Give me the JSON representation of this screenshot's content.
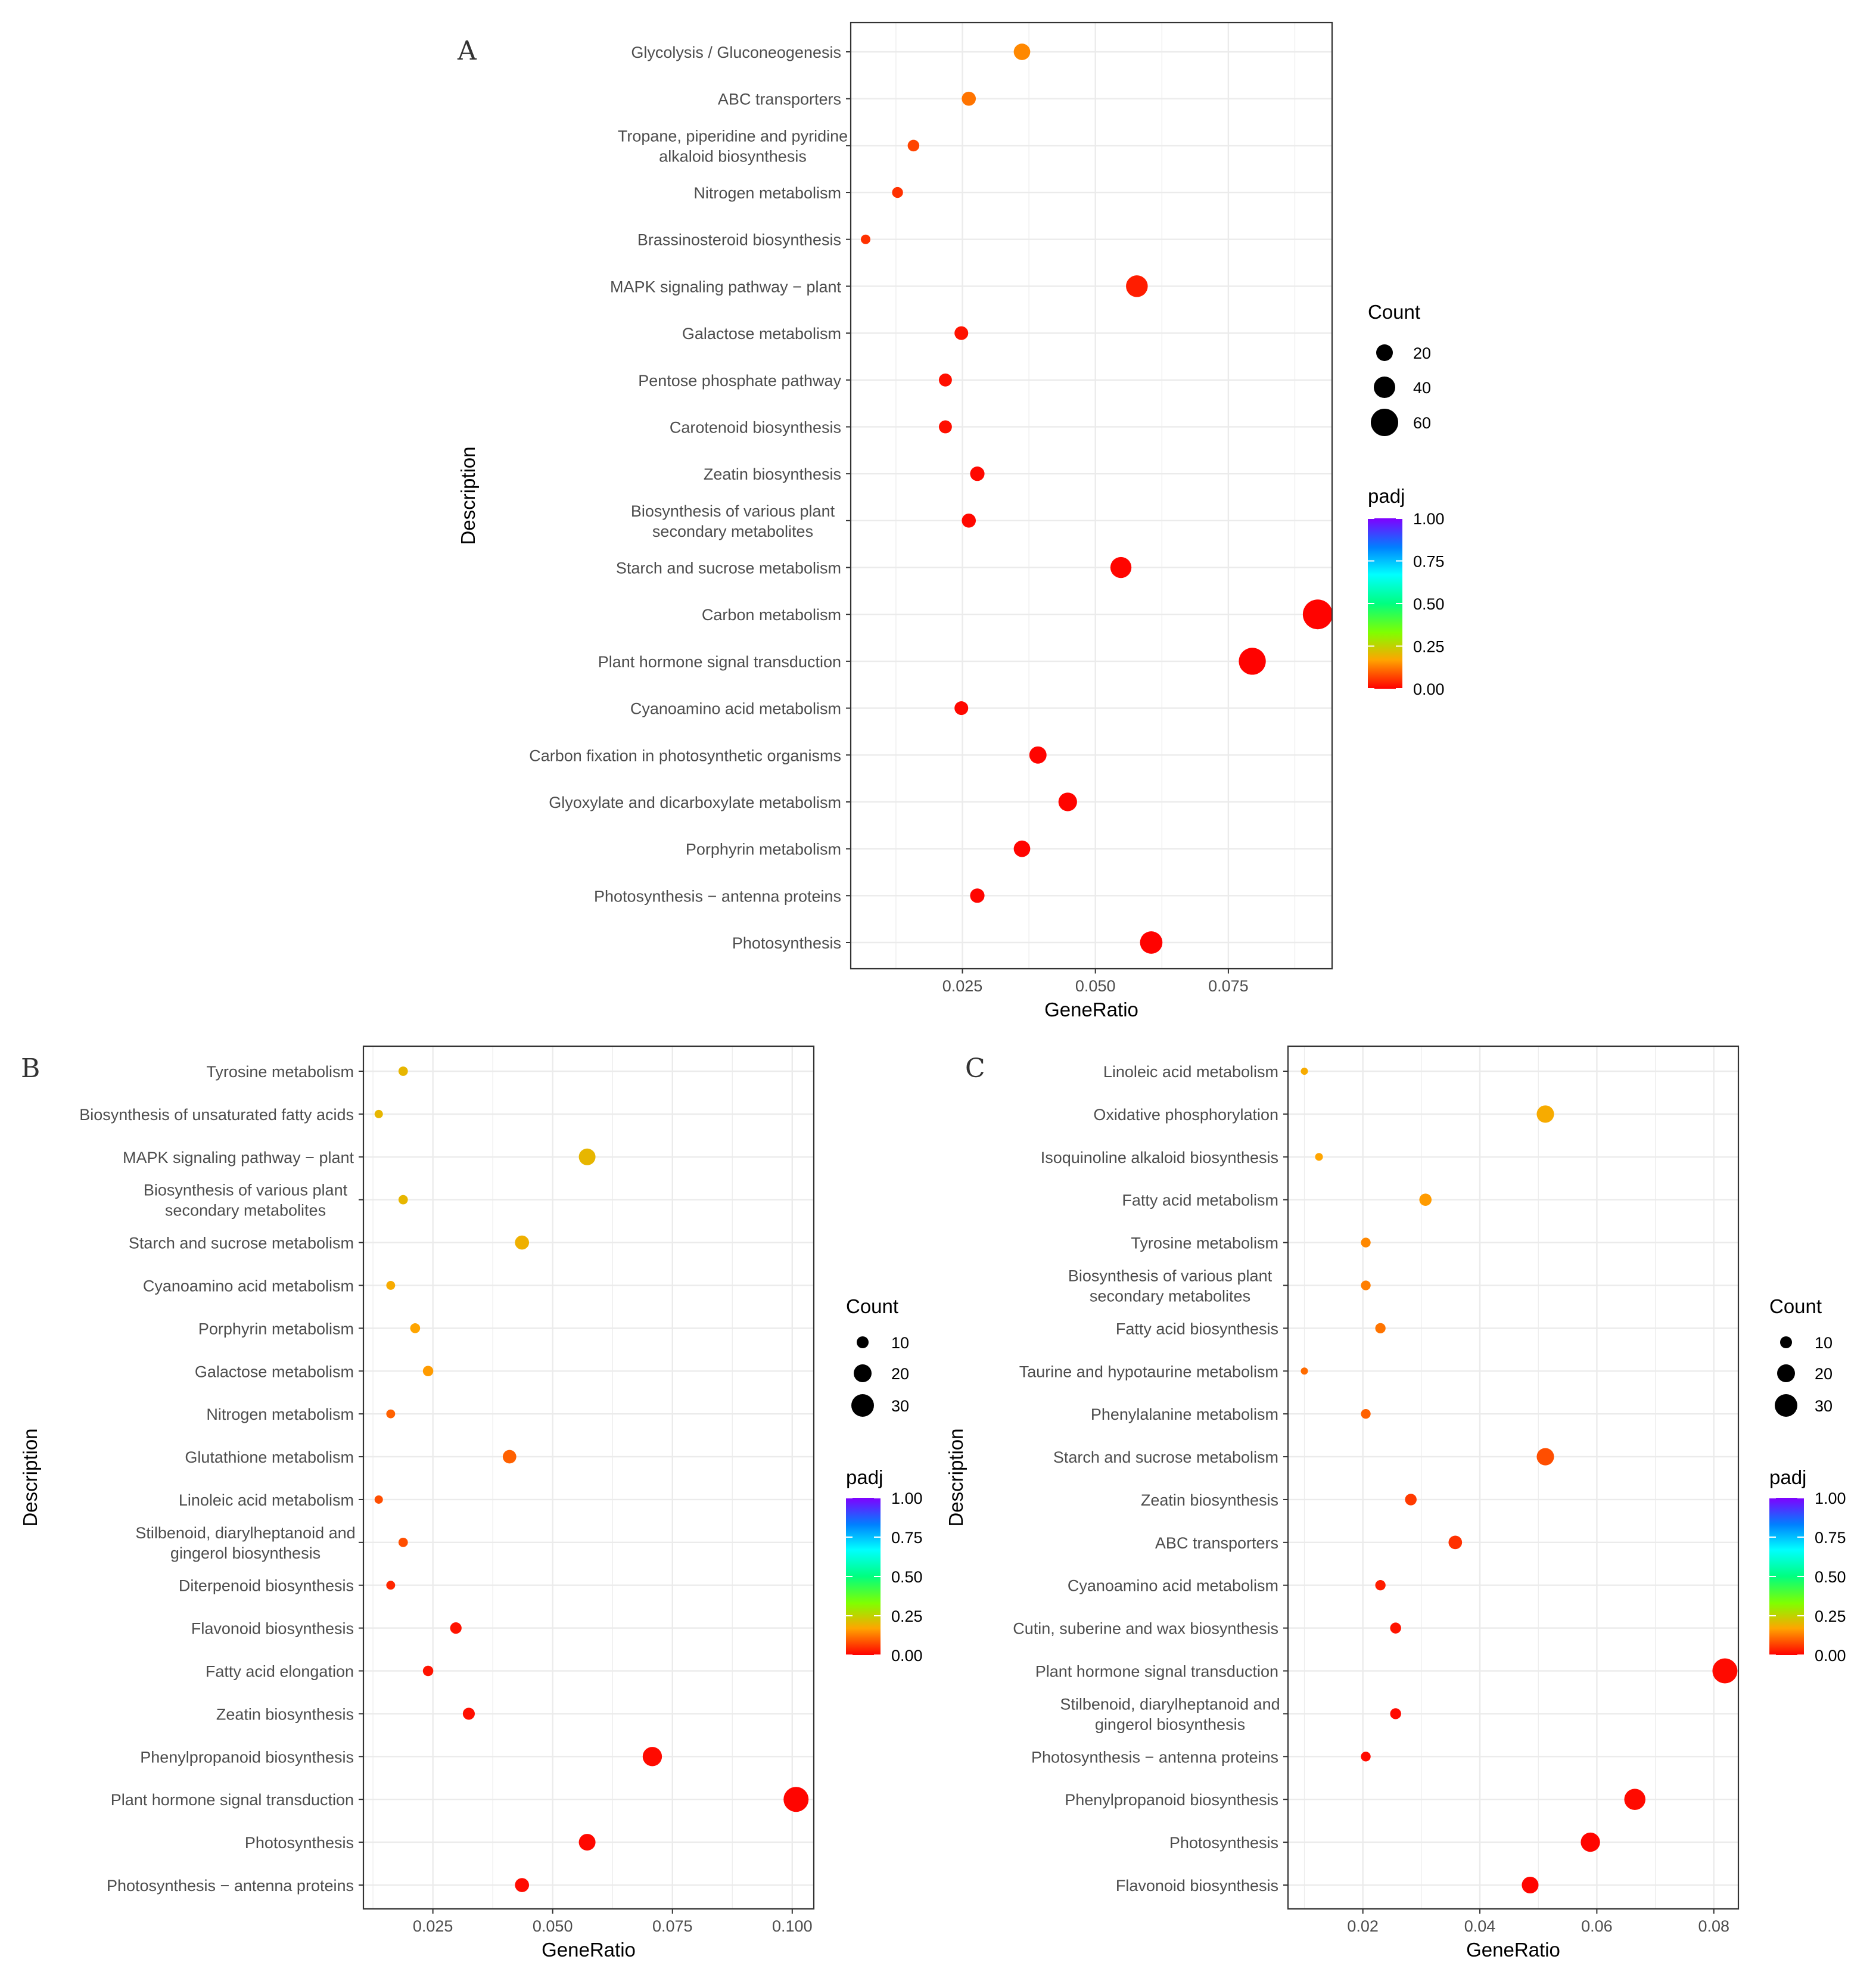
{
  "chart_data": [
    {
      "panel": "A",
      "type": "scatter",
      "xlabel": "GeneRatio",
      "ylabel": "Description",
      "xlim": [
        0.004,
        0.0945
      ],
      "xticks": [
        0.025,
        0.05,
        0.075
      ],
      "xtick_labels": [
        "0.025",
        "0.050",
        "0.075"
      ],
      "size_legend": {
        "title": "Count",
        "values": [
          20,
          40,
          60
        ],
        "labels": [
          "20",
          "40",
          "60"
        ]
      },
      "color_legend": {
        "title": "padj",
        "ticks": [
          1.0,
          0.75,
          0.5,
          0.25,
          0.0
        ],
        "labels": [
          "1.00",
          "0.75",
          "0.50",
          "0.25",
          "0.00"
        ]
      },
      "legend_position": "right",
      "categories": [
        [
          "Glycolysis / Gluconeogenesis"
        ],
        [
          "ABC transporters"
        ],
        [
          "Tropane, piperidine and pyridine",
          "alkaloid biosynthesis"
        ],
        [
          "Nitrogen metabolism"
        ],
        [
          "Brassinosteroid biosynthesis"
        ],
        [
          "MAPK signaling pathway − plant"
        ],
        [
          "Galactose metabolism"
        ],
        [
          "Pentose phosphate pathway"
        ],
        [
          "Carotenoid biosynthesis"
        ],
        [
          "Zeatin biosynthesis"
        ],
        [
          "Biosynthesis of various plant",
          "secondary metabolites"
        ],
        [
          "Starch and sucrose metabolism"
        ],
        [
          "Carbon metabolism"
        ],
        [
          "Plant hormone signal transduction"
        ],
        [
          "Cyanoamino acid metabolism"
        ],
        [
          "Carbon fixation in photosynthetic organisms"
        ],
        [
          "Glyoxylate and dicarboxylate metabolism"
        ],
        [
          "Porphyrin metabolism"
        ],
        [
          "Photosynthesis − antenna proteins"
        ],
        [
          "Photosynthesis"
        ]
      ],
      "gene_ratio": [
        0.0362,
        0.0262,
        0.0158,
        0.0128,
        0.0068,
        0.0578,
        0.0248,
        0.0218,
        0.0218,
        0.0278,
        0.0262,
        0.0548,
        0.0918,
        0.0795,
        0.0248,
        0.0392,
        0.0448,
        0.0362,
        0.0278,
        0.0605
      ],
      "count": [
        25,
        18,
        11,
        9,
        5,
        40,
        17,
        15,
        15,
        19,
        18,
        38,
        63,
        55,
        17,
        27,
        31,
        25,
        19,
        42
      ],
      "padj": [
        0.14,
        0.12,
        0.07,
        0.05,
        0.05,
        0.03,
        0.02,
        0.015,
        0.015,
        0.008,
        0.008,
        0.005,
        0.003,
        0.002,
        0.008,
        0.004,
        0.004,
        0.004,
        0.005,
        0.002
      ]
    },
    {
      "panel": "B",
      "type": "scatter",
      "xlabel": "GeneRatio",
      "ylabel": "Description",
      "xlim": [
        0.0105,
        0.1045
      ],
      "xticks": [
        0.025,
        0.05,
        0.075,
        0.1
      ],
      "xtick_labels": [
        "0.025",
        "0.050",
        "0.075",
        "0.100"
      ],
      "size_legend": {
        "title": "Count",
        "values": [
          10,
          20,
          30
        ],
        "labels": [
          "10",
          "20",
          "30"
        ]
      },
      "color_legend": {
        "title": "padj",
        "ticks": [
          1.0,
          0.75,
          0.5,
          0.25,
          0.0
        ],
        "labels": [
          "1.00",
          "0.75",
          "0.50",
          "0.25",
          "0.00"
        ]
      },
      "legend_position": "right",
      "categories": [
        [
          "Tyrosine metabolism"
        ],
        [
          "Biosynthesis of unsaturated fatty acids"
        ],
        [
          "MAPK signaling pathway − plant"
        ],
        [
          "Biosynthesis of various plant",
          "secondary metabolites"
        ],
        [
          "Starch and sucrose metabolism"
        ],
        [
          "Cyanoamino acid metabolism"
        ],
        [
          "Porphyrin metabolism"
        ],
        [
          "Galactose metabolism"
        ],
        [
          "Nitrogen metabolism"
        ],
        [
          "Glutathione metabolism"
        ],
        [
          "Linoleic acid metabolism"
        ],
        [
          "Stilbenoid, diarylheptanoid and",
          "gingerol biosynthesis"
        ],
        [
          "Diterpenoid biosynthesis"
        ],
        [
          "Flavonoid biosynthesis"
        ],
        [
          "Fatty acid elongation"
        ],
        [
          "Zeatin biosynthesis"
        ],
        [
          "Phenylpropanoid biosynthesis"
        ],
        [
          "Plant hormone signal transduction"
        ],
        [
          "Photosynthesis"
        ],
        [
          "Photosynthesis − antenna proteins"
        ]
      ],
      "gene_ratio": [
        0.0188,
        0.0137,
        0.0572,
        0.0188,
        0.0436,
        0.0162,
        0.0213,
        0.024,
        0.0162,
        0.041,
        0.0137,
        0.0188,
        0.0162,
        0.0298,
        0.024,
        0.0325,
        0.0708,
        0.1008,
        0.0572,
        0.0436
      ],
      "count": [
        7,
        5,
        21,
        7,
        16,
        6,
        8,
        9,
        6,
        15,
        5,
        7,
        6,
        11,
        9,
        12,
        26,
        37,
        21,
        16
      ],
      "padj": [
        0.2,
        0.2,
        0.2,
        0.2,
        0.19,
        0.18,
        0.17,
        0.16,
        0.1,
        0.1,
        0.08,
        0.08,
        0.04,
        0.02,
        0.02,
        0.015,
        0.01,
        0.005,
        0.008,
        0.01
      ]
    },
    {
      "panel": "C",
      "type": "scatter",
      "xlabel": "GeneRatio",
      "ylabel": "Description",
      "xlim": [
        0.0072,
        0.0842
      ],
      "xticks": [
        0.02,
        0.04,
        0.06,
        0.08
      ],
      "xtick_labels": [
        "0.02",
        "0.04",
        "0.06",
        "0.08"
      ],
      "size_legend": {
        "title": "Count",
        "values": [
          10,
          20,
          30
        ],
        "labels": [
          "10",
          "20",
          "30"
        ]
      },
      "color_legend": {
        "title": "padj",
        "ticks": [
          1.0,
          0.75,
          0.5,
          0.25,
          0.0
        ],
        "labels": [
          "1.00",
          "0.75",
          "0.50",
          "0.25",
          "0.00"
        ]
      },
      "legend_position": "right",
      "categories": [
        [
          "Linoleic acid metabolism"
        ],
        [
          "Oxidative phosphorylation"
        ],
        [
          "Isoquinoline alkaloid biosynthesis"
        ],
        [
          "Fatty acid metabolism"
        ],
        [
          "Tyrosine metabolism"
        ],
        [
          "Biosynthesis of various plant",
          "secondary metabolites"
        ],
        [
          "Fatty acid biosynthesis"
        ],
        [
          "Taurine and hypotaurine metabolism"
        ],
        [
          "Phenylalanine metabolism"
        ],
        [
          "Starch and sucrose metabolism"
        ],
        [
          "Zeatin biosynthesis"
        ],
        [
          "ABC transporters"
        ],
        [
          "Cyanoamino acid metabolism"
        ],
        [
          "Cutin, suberine and wax biosynthesis"
        ],
        [
          "Plant hormone signal transduction"
        ],
        [
          "Stilbenoid, diarylheptanoid and",
          "gingerol biosynthesis"
        ],
        [
          "Photosynthesis − antenna proteins"
        ],
        [
          "Phenylpropanoid biosynthesis"
        ],
        [
          "Photosynthesis"
        ],
        [
          "Flavonoid biosynthesis"
        ]
      ],
      "gene_ratio": [
        0.01,
        0.0512,
        0.0125,
        0.0307,
        0.0205,
        0.0205,
        0.023,
        0.01,
        0.0205,
        0.0512,
        0.0282,
        0.0358,
        0.023,
        0.0256,
        0.0819,
        0.0256,
        0.0205,
        0.0665,
        0.0589,
        0.0486
      ],
      "count": [
        4,
        20,
        5,
        12,
        8,
        8,
        9,
        4,
        8,
        20,
        11,
        14,
        9,
        10,
        32,
        10,
        8,
        26,
        23,
        19
      ],
      "padj": [
        0.18,
        0.18,
        0.17,
        0.16,
        0.14,
        0.13,
        0.12,
        0.11,
        0.1,
        0.08,
        0.06,
        0.05,
        0.03,
        0.02,
        0.01,
        0.01,
        0.01,
        0.01,
        0.005,
        0.005
      ]
    }
  ]
}
